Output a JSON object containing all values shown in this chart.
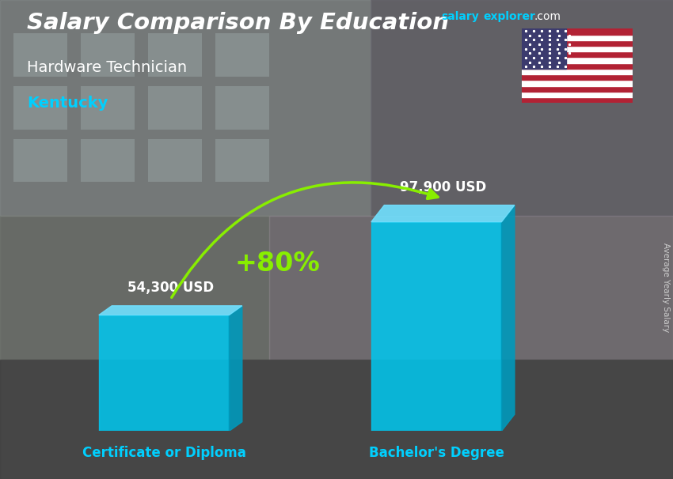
{
  "title_main": "Salary Comparison By Education",
  "subtitle_job": "Hardware Technician",
  "subtitle_location": "Kentucky",
  "categories": [
    "Certificate or Diploma",
    "Bachelor's Degree"
  ],
  "values": [
    54300,
    97900
  ],
  "value_labels": [
    "54,300 USD",
    "97,900 USD"
  ],
  "pct_change": "+80%",
  "bar_color_front": "#00c8f0",
  "bar_color_side": "#0099bb",
  "bar_color_top": "#70e0ff",
  "ylabel_rotated": "Average Yearly Salary",
  "bg_color": "#555555",
  "title_color": "#ffffff",
  "subtitle_job_color": "#ffffff",
  "subtitle_loc_color": "#00d0ff",
  "category_color": "#00d0ff",
  "value_color": "#ffffff",
  "pct_color": "#88ee00",
  "arrow_color": "#88ee00",
  "salary_color": "#00d0ff",
  "explorer_color": "#00d0ff",
  "dotcom_color": "#ffffff",
  "rotated_label_color": "#cccccc",
  "ylim": [
    0,
    130000
  ],
  "bar_positions": [
    0.22,
    0.68
  ],
  "bar_width": 0.22
}
